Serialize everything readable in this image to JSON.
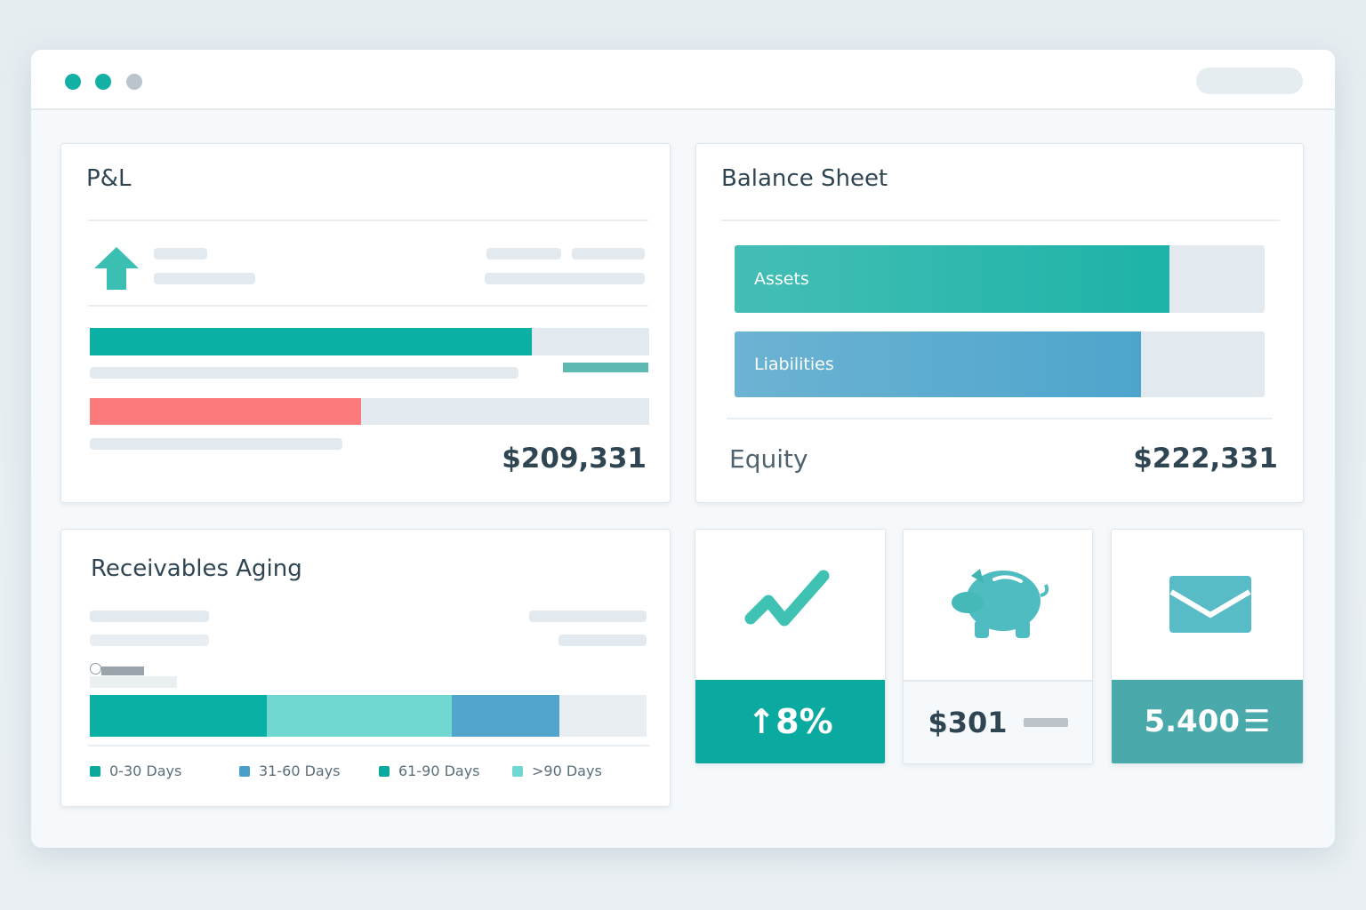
{
  "window": {
    "controls": [
      {
        "color": "#12b0a5"
      },
      {
        "color": "#12b0a5"
      },
      {
        "color": "#b9c4cb"
      }
    ]
  },
  "pnl": {
    "title": "P&L",
    "icon": "arrow-up-icon",
    "revenue_fill": 0.79,
    "expense_fill": 0.485,
    "revenue_color": "#0bb0a5",
    "expense_color": "#fb7b7c",
    "total": "$209,331"
  },
  "balance": {
    "title": "Balance Sheet",
    "bars": [
      {
        "label": "Assets",
        "fill": 0.82,
        "color": "#1db3a7"
      },
      {
        "label": "Liabilities",
        "fill": 0.766,
        "color": "#4ea5cc"
      }
    ],
    "equity_label": "Equity",
    "equity_value": "$222,331"
  },
  "receivables": {
    "title": "Receivables Aging",
    "segments": [
      {
        "fill": 0.318,
        "color": "#0bb0a5"
      },
      {
        "fill": 0.332,
        "color": "#70d8d0"
      },
      {
        "fill": 0.193,
        "color": "#52a5cc"
      }
    ],
    "legend": [
      {
        "label": "0-30 Days",
        "color": "#0aa99e"
      },
      {
        "label": "31-60 Days",
        "color": "#4a9fca"
      },
      {
        "label": "61-90 Days",
        "color": "#0aa99e"
      },
      {
        "label": ">90 Days",
        "color": "#70d8d0"
      }
    ]
  },
  "tiles": [
    {
      "icon": "trend-up-icon",
      "value": "↑8%"
    },
    {
      "icon": "piggy-bank-icon",
      "value": "$301"
    },
    {
      "icon": "envelope-icon",
      "value": "5.400"
    }
  ]
}
